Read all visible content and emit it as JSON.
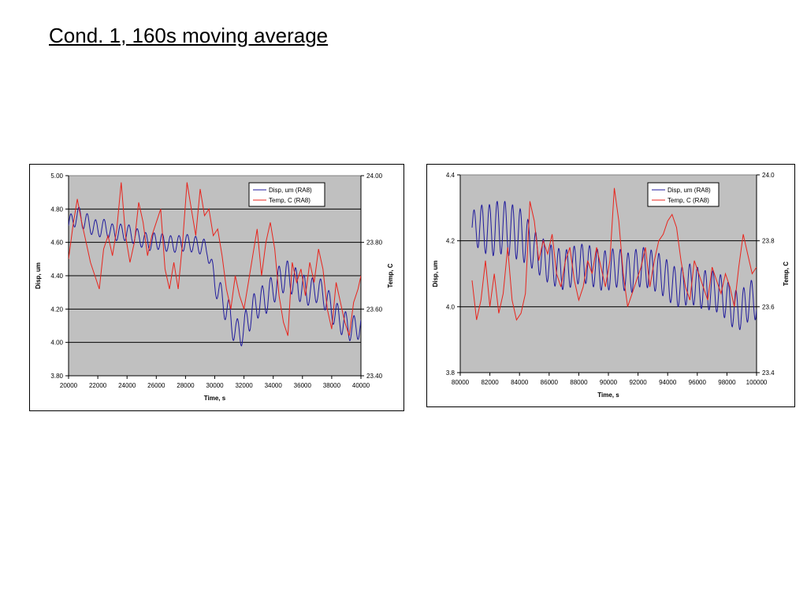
{
  "slide": {
    "title": "Cond. 1, 160s moving average"
  },
  "chart_data": [
    {
      "type": "line",
      "xlabel": "Time, s",
      "ylabel": "Disp, um",
      "y2label": "Temp, C",
      "xlim": [
        20000,
        40000
      ],
      "ylim": [
        3.8,
        5.0
      ],
      "y2lim": [
        23.4,
        24.0
      ],
      "x_ticks": [
        "20000",
        "22000",
        "24000",
        "26000",
        "28000",
        "30000",
        "32000",
        "34000",
        "36000",
        "38000",
        "40000"
      ],
      "y_ticks": [
        "3.80",
        "4.00",
        "4.20",
        "4.40",
        "4.60",
        "4.80",
        "5.00"
      ],
      "y2_ticks": [
        "23.40",
        "23.60",
        "23.80",
        "24.00"
      ],
      "grid": true,
      "plot_background": "#c0c0c0",
      "legend_position": "top-right",
      "series": [
        {
          "name": "Disp, um (RA8)",
          "axis": "left",
          "color": "#1f1a9c",
          "x": [
            20000,
            20500,
            21000,
            21500,
            22000,
            22500,
            23000,
            23500,
            24000,
            24500,
            25000,
            25500,
            26000,
            26500,
            27000,
            27500,
            28000,
            28500,
            29000,
            29500,
            30000,
            30500,
            31000,
            31500,
            32000,
            32500,
            33000,
            33500,
            34000,
            34500,
            35000,
            35500,
            36000,
            36500,
            37000,
            37500,
            38000,
            38500,
            39000,
            39500,
            40000
          ],
          "y": [
            4.7,
            4.76,
            4.74,
            4.7,
            4.68,
            4.69,
            4.66,
            4.66,
            4.66,
            4.64,
            4.62,
            4.6,
            4.61,
            4.6,
            4.59,
            4.59,
            4.6,
            4.59,
            4.58,
            4.56,
            4.36,
            4.26,
            4.16,
            4.05,
            4.08,
            4.18,
            4.24,
            4.26,
            4.32,
            4.38,
            4.4,
            4.36,
            4.32,
            4.3,
            4.32,
            4.28,
            4.2,
            4.14,
            4.1,
            4.08,
            4.1
          ],
          "amp": [
            0.05,
            0.06,
            0.06,
            0.05,
            0.05,
            0.05,
            0.05,
            0.05,
            0.05,
            0.05,
            0.05,
            0.05,
            0.05,
            0.05,
            0.05,
            0.05,
            0.05,
            0.05,
            0.05,
            0.05,
            0.07,
            0.08,
            0.09,
            0.09,
            0.09,
            0.09,
            0.09,
            0.09,
            0.09,
            0.09,
            0.09,
            0.09,
            0.09,
            0.08,
            0.08,
            0.08,
            0.08,
            0.08,
            0.08,
            0.08,
            0.07
          ],
          "period": 570
        },
        {
          "name": "Temp, C (RA8)",
          "axis": "right",
          "color": "#e8241c",
          "x": [
            20000,
            20300,
            20600,
            20900,
            21200,
            21500,
            21800,
            22100,
            22400,
            22700,
            23000,
            23300,
            23600,
            23900,
            24200,
            24500,
            24800,
            25100,
            25400,
            25700,
            26000,
            26300,
            26600,
            26900,
            27200,
            27500,
            27800,
            28100,
            28400,
            28700,
            29000,
            29300,
            29600,
            29900,
            30200,
            30500,
            30800,
            31100,
            31400,
            31700,
            32000,
            32300,
            32600,
            32900,
            33200,
            33500,
            33800,
            34100,
            34400,
            34700,
            35000,
            35300,
            35600,
            35900,
            36200,
            36500,
            36800,
            37100,
            37400,
            37700,
            38000,
            38300,
            38600,
            38900,
            39200,
            39500,
            39800,
            40000
          ],
          "y": [
            23.75,
            23.85,
            23.93,
            23.86,
            23.8,
            23.74,
            23.7,
            23.66,
            23.78,
            23.82,
            23.76,
            23.84,
            23.98,
            23.82,
            23.74,
            23.8,
            23.92,
            23.86,
            23.76,
            23.82,
            23.86,
            23.9,
            23.72,
            23.66,
            23.74,
            23.66,
            23.8,
            23.98,
            23.9,
            23.82,
            23.96,
            23.88,
            23.9,
            23.82,
            23.84,
            23.76,
            23.66,
            23.6,
            23.7,
            23.64,
            23.6,
            23.68,
            23.76,
            23.84,
            23.7,
            23.8,
            23.86,
            23.78,
            23.64,
            23.56,
            23.52,
            23.74,
            23.68,
            23.72,
            23.64,
            23.74,
            23.68,
            23.78,
            23.72,
            23.6,
            23.54,
            23.68,
            23.62,
            23.56,
            23.52,
            23.62,
            23.66,
            23.7
          ]
        }
      ]
    },
    {
      "type": "line",
      "xlabel": "Time, s",
      "ylabel": "Disp, um",
      "y2label": "Temp, C",
      "xlim": [
        80000,
        100000
      ],
      "ylim": [
        3.8,
        4.4
      ],
      "y2lim": [
        23.4,
        24.0
      ],
      "x_ticks": [
        "80000",
        "82000",
        "84000",
        "86000",
        "88000",
        "90000",
        "92000",
        "94000",
        "96000",
        "98000",
        "100000"
      ],
      "y_ticks": [
        "3.8",
        "4.0",
        "4.2",
        "4.4"
      ],
      "y2_ticks": [
        "23.4",
        "23.6",
        "23.8",
        "24.0"
      ],
      "grid": true,
      "plot_background": "#c0c0c0",
      "legend_position": "top-right",
      "series": [
        {
          "name": "Disp, um (RA8)",
          "axis": "left",
          "color": "#1f1a9c",
          "x": [
            80800,
            81500,
            82000,
            82500,
            83000,
            83500,
            84000,
            84500,
            85000,
            85500,
            86000,
            86500,
            87000,
            87500,
            88000,
            88500,
            89000,
            89500,
            90000,
            90500,
            91000,
            91500,
            92000,
            92500,
            93000,
            93500,
            94000,
            94500,
            95000,
            95500,
            96000,
            96500,
            97000,
            97500,
            98000,
            98500,
            99000,
            99500,
            100000
          ],
          "y": [
            4.24,
            4.24,
            4.23,
            4.24,
            4.24,
            4.23,
            4.22,
            4.2,
            4.17,
            4.15,
            4.13,
            4.12,
            4.11,
            4.12,
            4.13,
            4.13,
            4.12,
            4.11,
            4.11,
            4.12,
            4.11,
            4.1,
            4.12,
            4.12,
            4.11,
            4.1,
            4.08,
            4.06,
            4.06,
            4.07,
            4.06,
            4.05,
            4.05,
            4.04,
            4.02,
            3.99,
            3.99,
            4.02,
            4.02
          ],
          "amp": [
            0.05,
            0.07,
            0.08,
            0.08,
            0.08,
            0.08,
            0.08,
            0.07,
            0.06,
            0.06,
            0.06,
            0.06,
            0.06,
            0.06,
            0.06,
            0.06,
            0.06,
            0.06,
            0.06,
            0.06,
            0.06,
            0.06,
            0.06,
            0.06,
            0.06,
            0.06,
            0.06,
            0.06,
            0.06,
            0.06,
            0.06,
            0.06,
            0.06,
            0.06,
            0.06,
            0.06,
            0.06,
            0.06,
            0.06
          ],
          "period": 520
        },
        {
          "name": "Temp, C (RA8)",
          "axis": "right",
          "color": "#e8241c",
          "x": [
            80800,
            81100,
            81400,
            81700,
            82000,
            82300,
            82600,
            82900,
            83200,
            83500,
            83800,
            84100,
            84400,
            84700,
            85000,
            85300,
            85600,
            85900,
            86200,
            86500,
            86800,
            87100,
            87400,
            87700,
            88000,
            88300,
            88600,
            88900,
            89200,
            89500,
            89800,
            90100,
            90400,
            90700,
            91000,
            91300,
            91600,
            91900,
            92200,
            92500,
            92800,
            93100,
            93400,
            93700,
            94000,
            94300,
            94600,
            94900,
            95200,
            95500,
            95800,
            96100,
            96400,
            96700,
            97000,
            97300,
            97600,
            97900,
            98200,
            98500,
            98800,
            99100,
            99400,
            99700,
            100000
          ],
          "y": [
            23.68,
            23.56,
            23.62,
            23.74,
            23.6,
            23.7,
            23.58,
            23.64,
            23.78,
            23.62,
            23.56,
            23.58,
            23.64,
            23.92,
            23.86,
            23.74,
            23.8,
            23.76,
            23.82,
            23.7,
            23.66,
            23.74,
            23.78,
            23.68,
            23.62,
            23.66,
            23.74,
            23.7,
            23.78,
            23.72,
            23.66,
            23.74,
            23.96,
            23.86,
            23.7,
            23.6,
            23.64,
            23.68,
            23.72,
            23.78,
            23.66,
            23.74,
            23.8,
            23.82,
            23.86,
            23.88,
            23.84,
            23.74,
            23.66,
            23.62,
            23.74,
            23.7,
            23.66,
            23.62,
            23.72,
            23.68,
            23.64,
            23.7,
            23.66,
            23.6,
            23.72,
            23.82,
            23.76,
            23.7,
            23.72
          ]
        }
      ]
    }
  ]
}
